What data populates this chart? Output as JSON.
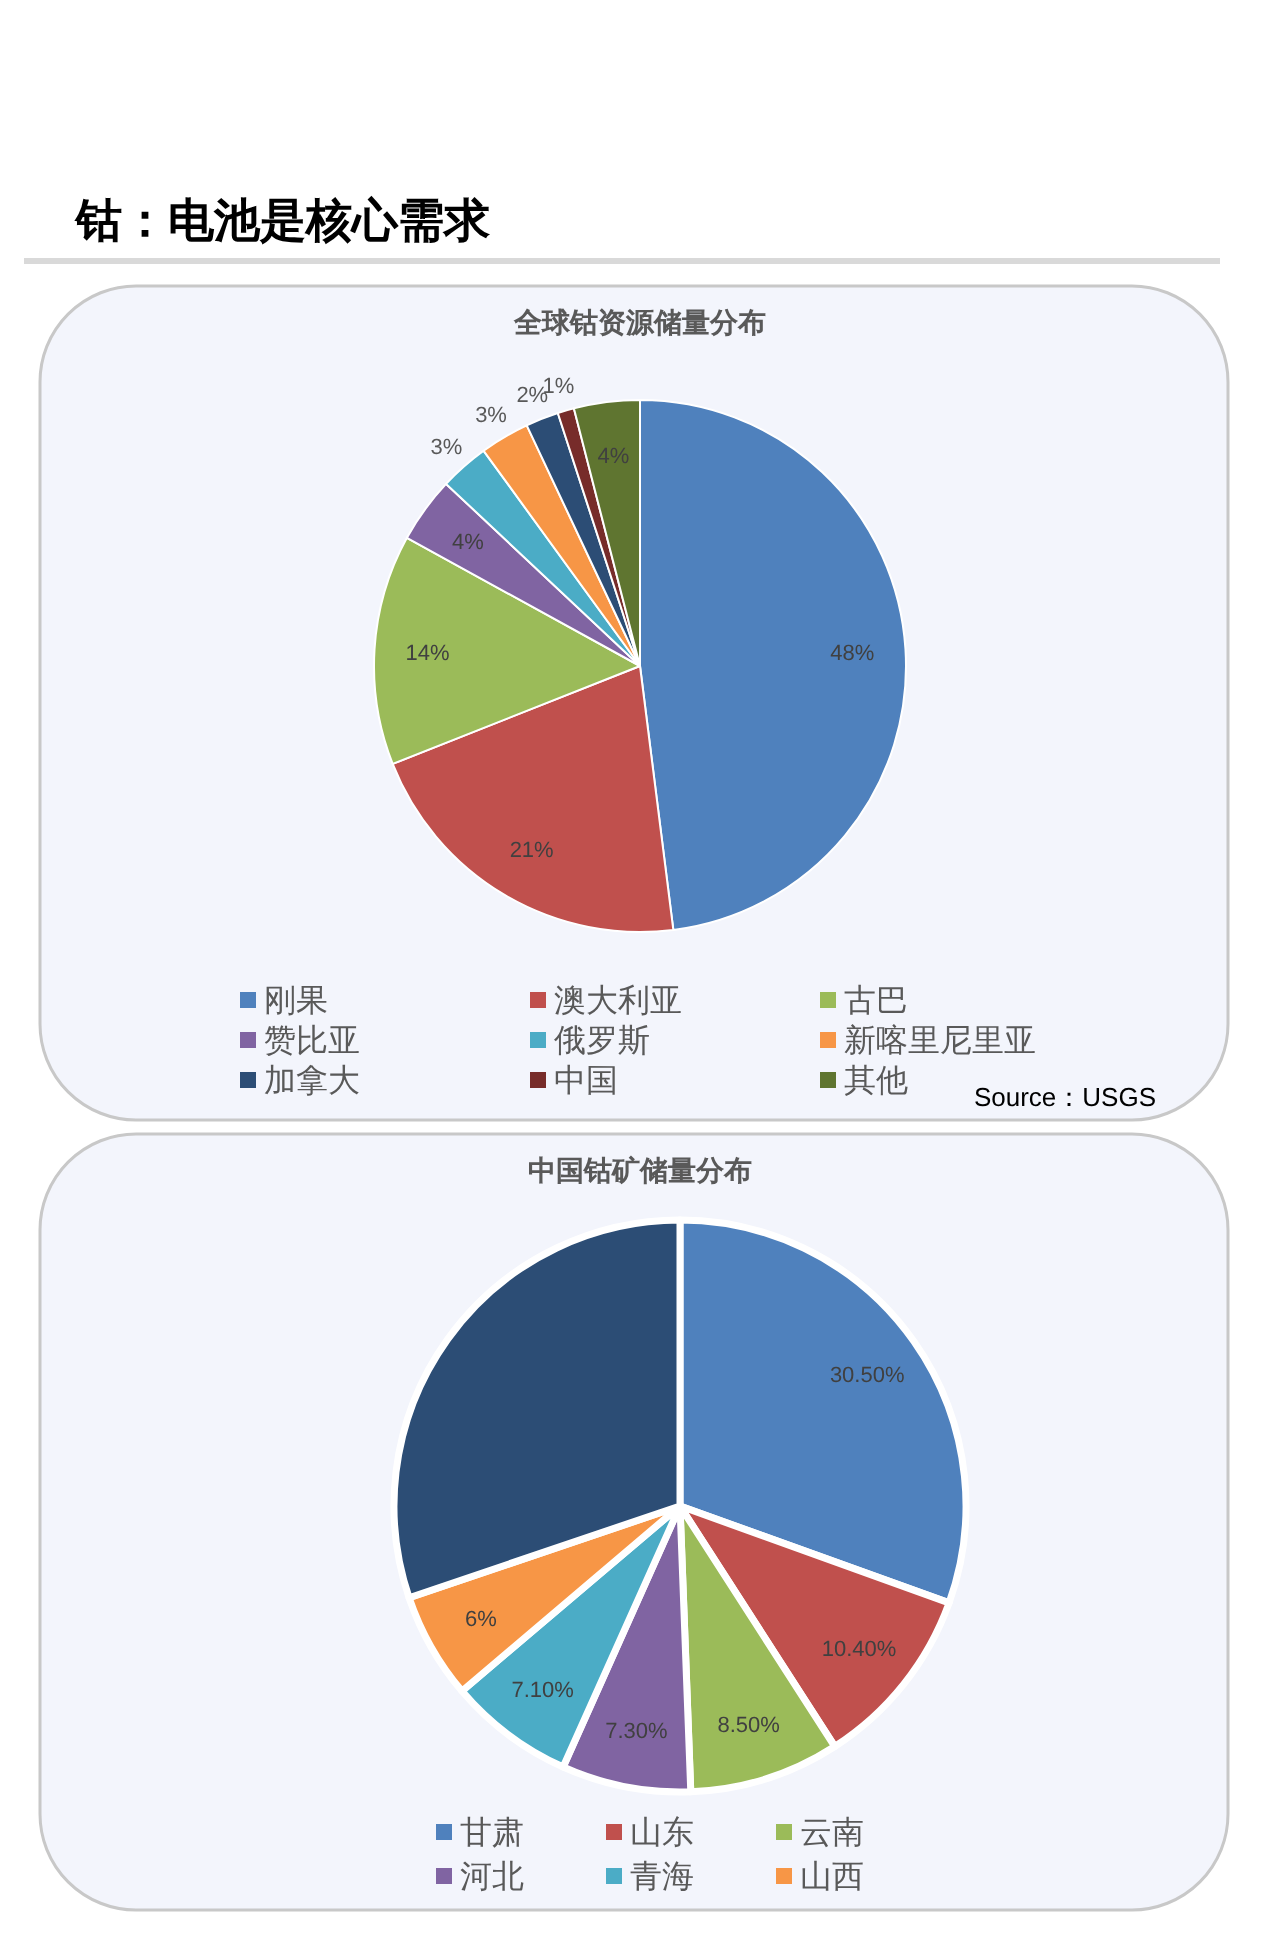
{
  "chart_data": [
    {
      "type": "pie",
      "title": "全球钴资源储量分布",
      "categories": [
        "刚果",
        "澳大利亚",
        "古巴",
        "赞比亚",
        "俄罗斯",
        "新喀里尼里亚",
        "加拿大",
        "中国",
        "其他"
      ],
      "values": [
        48,
        21,
        14,
        4,
        3,
        3,
        2,
        1,
        4
      ],
      "colors": [
        "#4f81bd",
        "#c0504d",
        "#9bbb59",
        "#8064a2",
        "#4bacc6",
        "#f79646",
        "#2c4d75",
        "#772c2a",
        "#5f7530"
      ],
      "value_labels": [
        "48%",
        "21%",
        "14%",
        "4%",
        "3%",
        "3%",
        "2%",
        "1%",
        "4%"
      ],
      "legend": "bottom",
      "annotations": [
        "钴：电池是核心需求",
        "Source：USGS"
      ]
    },
    {
      "type": "pie",
      "title": "中国钴矿储量分布",
      "categories": [
        "甘肃",
        "山东",
        "云南",
        "河北",
        "青海",
        "山西",
        null
      ],
      "values": [
        30.5,
        10.4,
        8.5,
        7.3,
        7.1,
        6,
        30.2
      ],
      "colors": [
        "#4f81bd",
        "#c0504d",
        "#9bbb59",
        "#8064a2",
        "#4bacc6",
        "#f79646",
        "#2c4d75"
      ],
      "value_labels": [
        "30.50%",
        "10.40%",
        "8.50%",
        "7.30%",
        "7.10%",
        "6%",
        null
      ],
      "legend": "bottom"
    }
  ]
}
